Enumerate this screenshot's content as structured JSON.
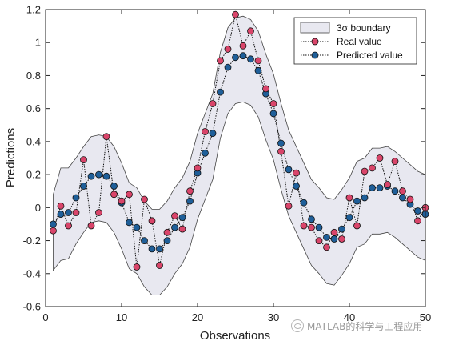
{
  "chart_data": {
    "type": "line",
    "xlabel": "Observations",
    "ylabel": "Predictions",
    "xlim": [
      0,
      50
    ],
    "ylim": [
      -0.6,
      1.2
    ],
    "xticks": [
      "0",
      "10",
      "20",
      "30",
      "40",
      "50"
    ],
    "yticks": [
      "-0.6",
      "-0.4",
      "-0.2",
      "0",
      "0.2",
      "0.4",
      "0.6",
      "0.8",
      "1",
      "1.2"
    ],
    "grid": false,
    "legend_position": "top-right",
    "legend": [
      "3σ boundary",
      "Real value",
      "Predicted value"
    ],
    "x": [
      1,
      2,
      3,
      4,
      5,
      6,
      7,
      8,
      9,
      10,
      11,
      12,
      13,
      14,
      15,
      16,
      17,
      18,
      19,
      20,
      21,
      22,
      23,
      24,
      25,
      26,
      27,
      28,
      29,
      30,
      31,
      32,
      33,
      34,
      35,
      36,
      37,
      38,
      39,
      40,
      41,
      42,
      43,
      44,
      45,
      46,
      47,
      48,
      49,
      50
    ],
    "series": [
      {
        "name": "Real value",
        "color": "#d9456a",
        "values": [
          -0.14,
          0.01,
          -0.11,
          -0.03,
          0.29,
          -0.11,
          -0.03,
          0.43,
          0.08,
          0.04,
          0.08,
          -0.36,
          0.05,
          -0.08,
          -0.35,
          -0.15,
          -0.05,
          -0.13,
          0.1,
          0.24,
          0.46,
          0.63,
          0.89,
          0.96,
          1.17,
          0.98,
          1.07,
          0.89,
          0.72,
          0.63,
          0.34,
          0.01,
          0.21,
          -0.11,
          -0.12,
          -0.2,
          -0.24,
          -0.15,
          -0.19,
          0.06,
          -0.11,
          0.22,
          0.24,
          0.3,
          0.14,
          0.28,
          0.1,
          0.05,
          -0.08,
          0.0
        ]
      },
      {
        "name": "Predicted value",
        "color": "#1f5f99",
        "values": [
          -0.1,
          -0.04,
          -0.03,
          0.06,
          0.13,
          0.19,
          0.2,
          0.19,
          0.13,
          0.03,
          -0.09,
          -0.12,
          -0.2,
          -0.25,
          -0.25,
          -0.2,
          -0.12,
          -0.06,
          0.04,
          0.21,
          0.33,
          0.45,
          0.7,
          0.85,
          0.91,
          0.92,
          0.9,
          0.83,
          0.69,
          0.57,
          0.39,
          0.23,
          0.13,
          0.03,
          -0.07,
          -0.12,
          -0.18,
          -0.19,
          -0.13,
          -0.06,
          0.04,
          0.06,
          0.12,
          0.12,
          0.13,
          0.1,
          0.06,
          0.02,
          -0.02,
          -0.04
        ]
      },
      {
        "name": "3σ boundary",
        "color": "#e8e8f0",
        "upper": [
          0.08,
          0.24,
          0.24,
          0.3,
          0.37,
          0.43,
          0.44,
          0.43,
          0.37,
          0.27,
          0.15,
          0.12,
          0.04,
          -0.01,
          -0.01,
          0.04,
          0.12,
          0.18,
          0.28,
          0.45,
          0.57,
          0.69,
          0.94,
          1.09,
          1.15,
          1.16,
          1.14,
          1.07,
          0.93,
          0.81,
          0.63,
          0.47,
          0.37,
          0.27,
          0.17,
          0.12,
          0.06,
          0.05,
          0.11,
          0.18,
          0.28,
          0.3,
          0.36,
          0.36,
          0.37,
          0.34,
          0.3,
          0.26,
          0.22,
          0.2
        ],
        "lower": [
          -0.38,
          -0.32,
          -0.31,
          -0.22,
          -0.15,
          -0.09,
          -0.08,
          -0.09,
          -0.15,
          -0.25,
          -0.37,
          -0.4,
          -0.48,
          -0.53,
          -0.53,
          -0.48,
          -0.4,
          -0.34,
          -0.24,
          -0.07,
          0.05,
          0.17,
          0.42,
          0.57,
          0.63,
          0.64,
          0.62,
          0.55,
          0.41,
          0.29,
          0.11,
          -0.05,
          -0.15,
          -0.25,
          -0.35,
          -0.4,
          -0.46,
          -0.47,
          -0.41,
          -0.34,
          -0.24,
          -0.22,
          -0.16,
          -0.16,
          -0.15,
          -0.18,
          -0.22,
          -0.26,
          -0.3,
          -0.32
        ]
      }
    ]
  },
  "watermark": "MATLAB的科学与工程应用"
}
